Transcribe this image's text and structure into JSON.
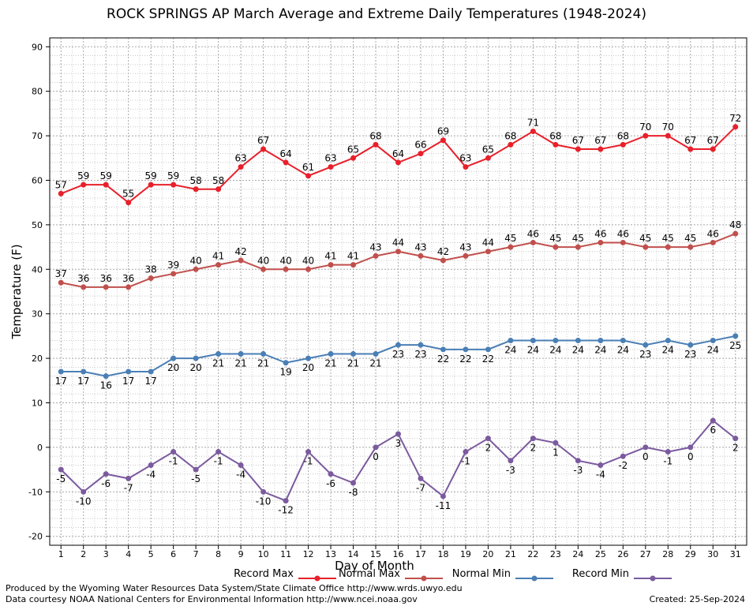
{
  "header": {
    "title": "ROCK SPRINGS AP March Average and Extreme Daily Temperatures (1948-2024)"
  },
  "footer": {
    "credit_line1": "Produced by the Wyoming Water Resources Data System/State Climate Office http://www.wrds.uwyo.edu",
    "credit_line2": "Data courtesy NOAA National Centers for Environmental Information http://www.ncei.noaa.gov",
    "created": "Created:  25-Sep-2024"
  },
  "chart_data": {
    "type": "line",
    "title": "ROCK SPRINGS AP March Average and Extreme Daily Temperatures (1948-2024)",
    "xlabel": "Day of Month",
    "ylabel": "Temperature (F)",
    "x": [
      1,
      2,
      3,
      4,
      5,
      6,
      7,
      8,
      9,
      10,
      11,
      12,
      13,
      14,
      15,
      16,
      17,
      18,
      19,
      20,
      21,
      22,
      23,
      24,
      25,
      26,
      27,
      28,
      29,
      30,
      31
    ],
    "xlim": [
      0.5,
      31.5
    ],
    "ylim": [
      -22,
      92
    ],
    "yticks": [
      -20,
      -10,
      0,
      10,
      20,
      30,
      40,
      50,
      60,
      70,
      80,
      90
    ],
    "grid": true,
    "legend_position": "bottom",
    "series": [
      {
        "name": "Record Max",
        "color": "#e8202a",
        "label_pos": "above",
        "values": [
          57,
          59,
          59,
          55,
          59,
          59,
          58,
          58,
          63,
          67,
          64,
          61,
          63,
          65,
          68,
          64,
          66,
          69,
          63,
          65,
          68,
          71,
          68,
          67,
          67,
          68,
          70,
          70,
          67,
          67,
          72
        ]
      },
      {
        "name": "Normal Max",
        "color": "#c0504d",
        "label_pos": "above",
        "values": [
          37,
          36,
          36,
          36,
          38,
          39,
          40,
          41,
          42,
          40,
          40,
          40,
          41,
          41,
          43,
          44,
          43,
          42,
          43,
          44,
          45,
          46,
          45,
          45,
          46,
          46,
          45,
          45,
          45,
          46,
          48
        ]
      },
      {
        "name": "Normal Min",
        "color": "#4a7fb5",
        "label_pos": "below",
        "values": [
          17,
          17,
          16,
          17,
          17,
          20,
          20,
          21,
          21,
          21,
          19,
          20,
          21,
          21,
          21,
          23,
          23,
          22,
          22,
          22,
          24,
          24,
          24,
          24,
          24,
          24,
          23,
          24,
          23,
          24,
          25
        ]
      },
      {
        "name": "Record Min",
        "color": "#7b5a9e",
        "label_pos": "below",
        "values": [
          -5,
          -10,
          -6,
          -7,
          -4,
          -1,
          -5,
          -1,
          -4,
          -10,
          -12,
          -1,
          -6,
          -8,
          0,
          3,
          -7,
          -11,
          -1,
          2,
          -3,
          2,
          1,
          -3,
          -4,
          -2,
          0,
          -1,
          0,
          6,
          2
        ]
      }
    ]
  }
}
